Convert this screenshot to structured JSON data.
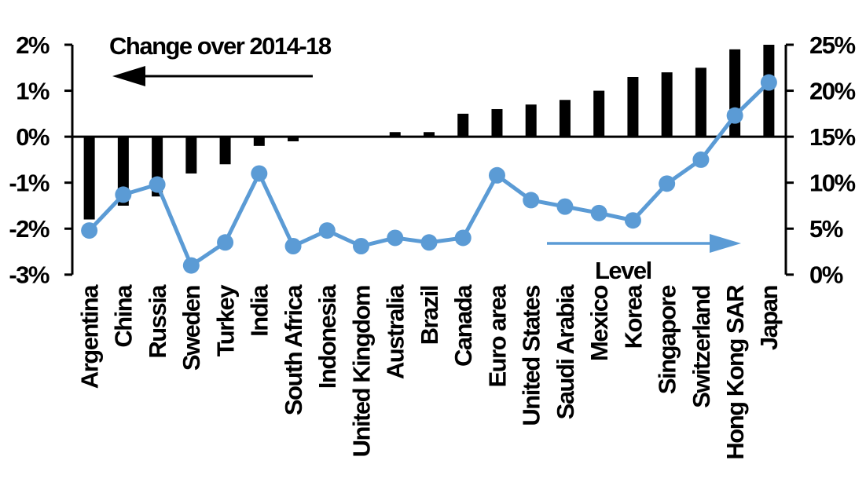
{
  "chart_data": {
    "type": "bar",
    "subtype": "dual-axis-bar-and-line",
    "grid": false,
    "legend_position": "none",
    "categories": [
      "Argentina",
      "China",
      "Russia",
      "Sweden",
      "Turkey",
      "India",
      "South Africa",
      "Indonesia",
      "United Kingdom",
      "Australia",
      "Brazil",
      "Canada",
      "Euro area",
      "United States",
      "Saudi Arabia",
      "Mexico",
      "Korea",
      "Singapore",
      "Switzerland",
      "Hong Kong SAR",
      "Japan"
    ],
    "series": [
      {
        "name": "Change over 2014-18",
        "type": "bar",
        "axis": "left",
        "color": "#000000",
        "values": [
          -1.8,
          -1.5,
          -1.3,
          -0.8,
          -0.6,
          -0.2,
          -0.1,
          0,
          0,
          0.1,
          0.1,
          0.5,
          0.6,
          0.7,
          0.8,
          1.0,
          1.3,
          1.4,
          1.5,
          1.9,
          2.0
        ]
      },
      {
        "name": "Level",
        "type": "line",
        "axis": "right",
        "color": "#5B9BD5",
        "values": [
          4.8,
          8.7,
          9.8,
          1.0,
          3.5,
          11.0,
          3.1,
          4.8,
          3.1,
          4.0,
          3.5,
          4.0,
          10.8,
          8.1,
          7.4,
          6.7,
          5.9,
          9.9,
          12.5,
          17.3,
          20.9
        ]
      }
    ],
    "left_axis": {
      "min": -3,
      "max": 2,
      "tick_step": 1,
      "tick_labels": [
        "2%",
        "1%",
        "0%",
        "-1%",
        "-2%",
        "-3%"
      ]
    },
    "right_axis": {
      "min": 0,
      "max": 25,
      "tick_step": 5,
      "tick_labels": [
        "25%",
        "20%",
        "15%",
        "10%",
        "5%",
        "0%"
      ]
    },
    "annotations": [
      {
        "text": "Change over 2014-18",
        "arrow": "left",
        "color": "#000000"
      },
      {
        "text": "Level",
        "arrow": "right",
        "color": "#5B9BD5"
      }
    ]
  }
}
